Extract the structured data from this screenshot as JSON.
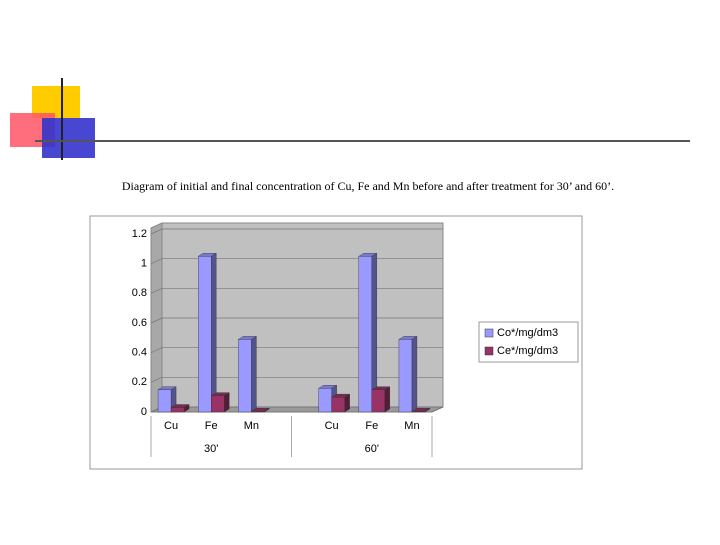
{
  "chart_data": {
    "type": "bar3d",
    "title": "Diagram of initial and final concentration of Cu, Fe and Mn before and after treatment for 30’ and 60’.",
    "categories": [
      "Cu",
      "Fe",
      "Mn",
      null,
      "Cu",
      "Fe",
      "Mn"
    ],
    "group_labels": [
      "30'",
      "60'"
    ],
    "series": [
      {
        "name": "Co*/mg/dm3",
        "color": "#9999ff",
        "values": [
          0.15,
          1.05,
          0.49,
          null,
          0.16,
          1.05,
          0.49
        ]
      },
      {
        "name": "Ce*/mg/dm3",
        "color": "#993366",
        "values": [
          0.03,
          0.11,
          0.005,
          null,
          0.1,
          0.15,
          0.005
        ]
      }
    ],
    "ylim": [
      0,
      1.2
    ],
    "yticks": [
      0,
      0.2,
      0.4,
      0.6,
      0.8,
      1,
      1.2
    ],
    "grid": true,
    "legend": "right"
  }
}
